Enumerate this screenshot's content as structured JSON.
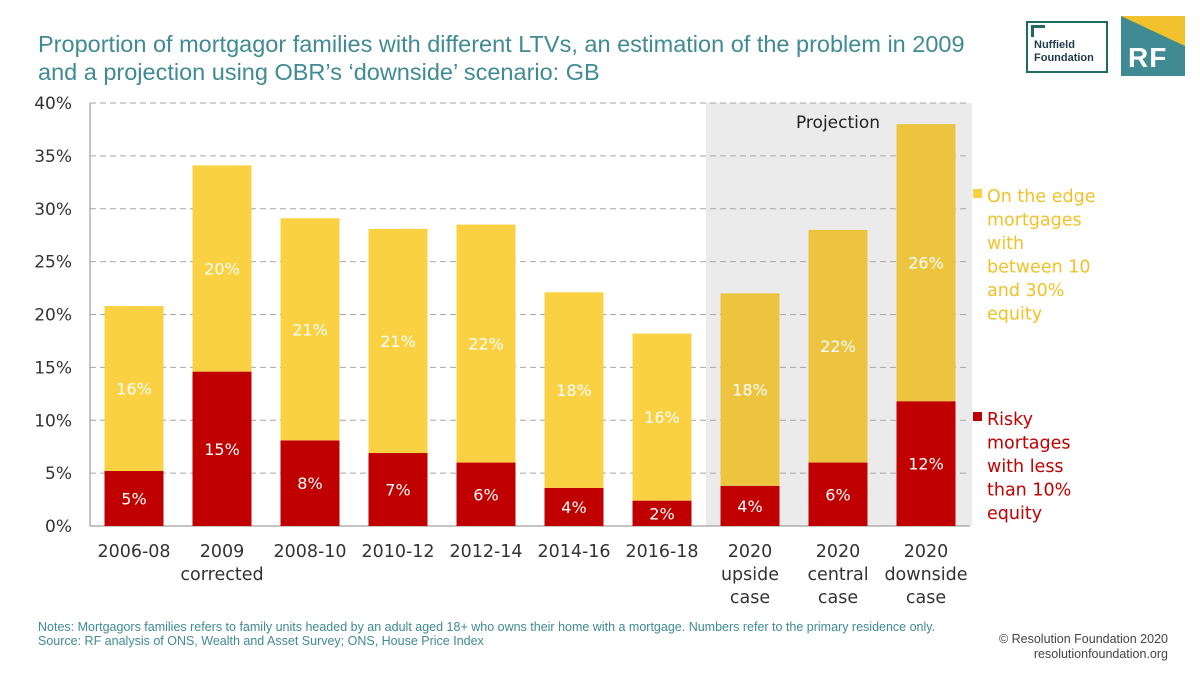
{
  "title": "Proportion of mortgagor families with different LTVs, an estimation of the problem in 2009 and a projection using OBR’s ‘downside’ scenario: GB",
  "logos": {
    "nuffield_line1": "Nuffield",
    "nuffield_line2": "Foundation",
    "rf": "RF"
  },
  "notes": {
    "line1": "Notes: Mortgagors families refers to family units headed by an adult aged 18+ who owns their home with a mortgage. Numbers refer to the primary residence only.",
    "line2": "Source: RF analysis of ONS, Wealth and Asset Survey; ONS, House Price Index"
  },
  "credit": {
    "line1": "© Resolution Foundation 2020",
    "line2": "resolutionfoundation.org"
  },
  "colors": {
    "risky": "#c00000",
    "edge": "#f9d143",
    "edge_projection": "#edc440",
    "projection_bg": "#ebebeb",
    "axis_text": "#333333",
    "legend_text": "#f0c22a",
    "legend_risky_text": "#c00000"
  },
  "chart_data": {
    "type": "bar",
    "stacked": true,
    "categories": [
      [
        "2006-08"
      ],
      [
        "2009",
        "corrected"
      ],
      [
        "2008-10"
      ],
      [
        "2010-12"
      ],
      [
        "2012-14"
      ],
      [
        "2014-16"
      ],
      [
        "2016-18"
      ],
      [
        "2020",
        "upside",
        "case"
      ],
      [
        "2020",
        "central",
        "case"
      ],
      [
        "2020",
        "downside",
        "case"
      ]
    ],
    "series": [
      {
        "name": [
          "Risky",
          "mortages",
          "with less",
          "than 10%",
          "equity"
        ],
        "values": [
          5.2,
          14.6,
          8.1,
          6.9,
          6.0,
          3.6,
          2.4,
          3.8,
          6.0,
          11.8
        ],
        "labels": [
          "5%",
          "15%",
          "8%",
          "7%",
          "6%",
          "4%",
          "2%",
          "4%",
          "6%",
          "12%"
        ]
      },
      {
        "name": [
          "On the edge",
          "mortgages",
          "with",
          "between 10",
          "and 30%",
          "equity"
        ],
        "values": [
          15.6,
          19.5,
          21.0,
          21.2,
          22.5,
          18.5,
          15.8,
          18.2,
          22.0,
          26.2
        ],
        "labels": [
          "16%",
          "20%",
          "21%",
          "21%",
          "22%",
          "18%",
          "16%",
          "18%",
          "22%",
          "26%"
        ]
      }
    ],
    "ylim": [
      0,
      40
    ],
    "yticks": [
      0,
      5,
      10,
      15,
      20,
      25,
      30,
      35,
      40
    ],
    "ytick_labels": [
      "0%",
      "5%",
      "10%",
      "15%",
      "20%",
      "25%",
      "30%",
      "35%",
      "40%"
    ],
    "grid": true,
    "legend_position": "right",
    "projection": {
      "label": "Projection",
      "start_index": 7
    }
  }
}
